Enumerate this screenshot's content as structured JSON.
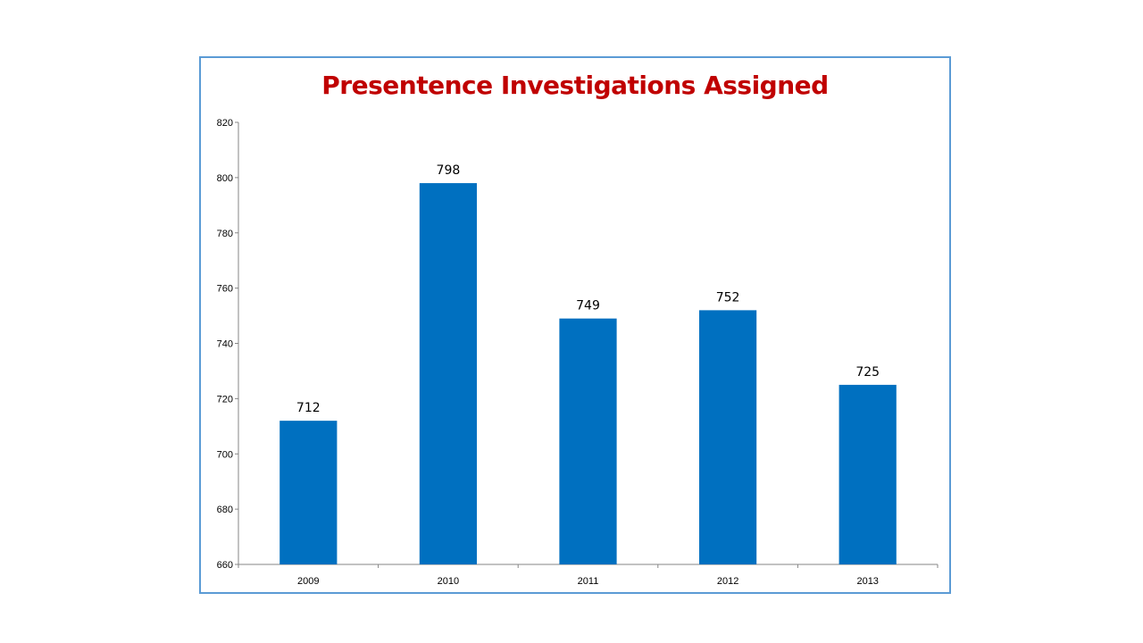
{
  "colors": {
    "bar": "#0070c0",
    "title": "#c00000",
    "border": "#5b9bd5",
    "axis": "#868686"
  },
  "chart_data": {
    "type": "bar",
    "title": "Presentence Investigations Assigned",
    "xlabel": "",
    "ylabel": "",
    "categories": [
      "2009",
      "2010",
      "2011",
      "2012",
      "2013"
    ],
    "values": [
      712,
      798,
      749,
      752,
      725
    ],
    "data_labels": [
      "712",
      "798",
      "749",
      "752",
      "725"
    ],
    "ylim": [
      660,
      820
    ],
    "yticks": [
      660,
      680,
      700,
      720,
      740,
      760,
      780,
      800,
      820
    ],
    "grid": false,
    "legend": "none"
  }
}
